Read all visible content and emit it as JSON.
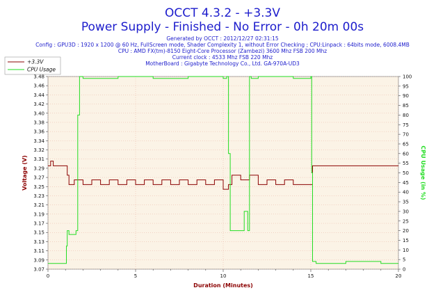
{
  "header": {
    "title_line1": "OCCT 4.3.2 - +3.3V",
    "title_line2": "Power Supply - Finished - No Error - 0h 20m 00s",
    "generated": "Generated by OCCT : 2012/12/27 02:31:15",
    "config": "Config : GPU3D : 1920 x 1200 @ 60 Hz, FullScreen mode, Shader Complexity 1, without Error Checking ; CPU:Linpack : 64bits mode, 6008.4MB",
    "cpu": "CPU : AMD FX(tm)-8150 Eight-Core Processor (Zambezi) 3600 Mhz FSB 200 Mhz",
    "clock": "Current clock : 4533 Mhz FSB 220 Mhz",
    "motherboard": "MotherBoard : Gigabyte Technology Co., Ltd. GA-970A-UD3"
  },
  "colors": {
    "voltage": "#8b0000",
    "cpu": "#22dd22",
    "plot_bg": "#fbf3e6",
    "grid": "#e8b0a0",
    "title": "#1c1ccc"
  },
  "chart_data": {
    "type": "line",
    "xlabel": "Duration (Minutes)",
    "ylabel_left": "Voltage (V)",
    "ylabel_right": "CPU Usage (in %)",
    "xlim": [
      0,
      20
    ],
    "ylim_left": [
      3.07,
      3.48
    ],
    "ylim_right": [
      0,
      100
    ],
    "x_ticks": [
      "0",
      "5",
      "10",
      "15",
      "20"
    ],
    "y_left_ticks": [
      "3.07",
      "3.09",
      "3.11",
      "3.13",
      "3.15",
      "3.17",
      "3.19",
      "3.21",
      "3.23",
      "3.25",
      "3.27",
      "3.29",
      "3.31",
      "3.32",
      "3.34",
      "3.36",
      "3.38",
      "3.40",
      "3.42",
      "3.44",
      "3.46",
      "3.48"
    ],
    "y_right_ticks": [
      "0",
      "5",
      "10",
      "15",
      "20",
      "25",
      "30",
      "35",
      "40",
      "45",
      "50",
      "55",
      "60",
      "65",
      "70",
      "75",
      "80",
      "85",
      "90",
      "95",
      "100"
    ],
    "grid": true,
    "legend_placement": "top-left",
    "series": [
      {
        "name": "+3.3V",
        "axis": "left",
        "x": [
          0,
          0.15,
          0.3,
          1.0,
          1.1,
          1.2,
          1.5,
          2.0,
          2.5,
          3.0,
          3.5,
          4.0,
          4.5,
          5.0,
          5.5,
          6.0,
          6.5,
          7.0,
          7.5,
          8.0,
          8.5,
          9.0,
          9.5,
          10.0,
          10.3,
          10.5,
          11.0,
          11.5,
          12.0,
          12.5,
          13.0,
          13.5,
          14.0,
          14.5,
          15.0,
          15.1,
          15.5,
          16.0,
          17.0,
          18.0,
          19.0,
          20.0
        ],
        "y": [
          3.29,
          3.3,
          3.29,
          3.29,
          3.27,
          3.25,
          3.26,
          3.25,
          3.26,
          3.25,
          3.26,
          3.25,
          3.26,
          3.25,
          3.26,
          3.25,
          3.26,
          3.25,
          3.26,
          3.25,
          3.26,
          3.25,
          3.26,
          3.24,
          3.25,
          3.27,
          3.26,
          3.27,
          3.25,
          3.26,
          3.25,
          3.26,
          3.25,
          3.25,
          3.25,
          3.29,
          3.29,
          3.29,
          3.29,
          3.29,
          3.29,
          3.29
        ]
      },
      {
        "name": "CPU Usage",
        "axis": "right",
        "x": [
          0,
          0.5,
          1.0,
          1.05,
          1.1,
          1.2,
          1.6,
          1.7,
          1.8,
          2.0,
          4.0,
          6.0,
          8.0,
          10.0,
          10.2,
          10.3,
          10.4,
          11.0,
          11.2,
          11.4,
          11.5,
          11.6,
          12.0,
          14.0,
          15.0,
          15.05,
          15.1,
          15.3,
          17.0,
          19.0,
          20.0
        ],
        "y": [
          3,
          3,
          3,
          12,
          20,
          18,
          20,
          80,
          100,
          99,
          100,
          99,
          100,
          99,
          100,
          60,
          20,
          20,
          30,
          20,
          100,
          99,
          100,
          99,
          100,
          50,
          4,
          3,
          4,
          3,
          3
        ]
      }
    ]
  }
}
